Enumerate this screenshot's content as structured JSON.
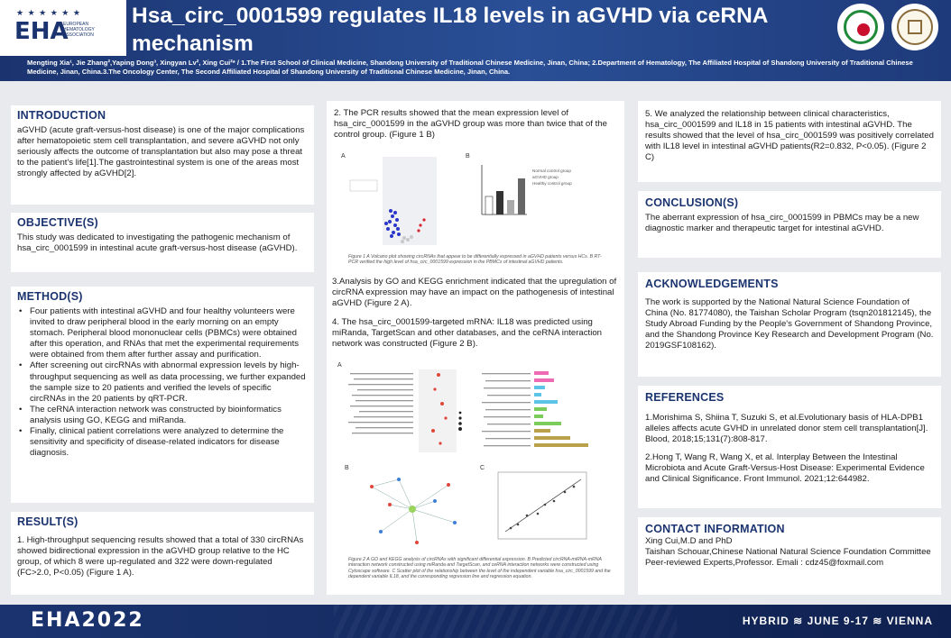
{
  "header": {
    "title": "Hsa_circ_0001599 regulates IL18 levels in aGVHD via ceRNA mechanism",
    "authors": "Mengting Xia¹, Jie Zhang²,Yaping Dong³, Xingyan Lv², Xing Cui²* / 1.The First School of Clinical Medicine, Shandong University of Traditional Chinese Medicine, Jinan, China; 2.Department of Hematology, The Affiliated Hospital of Shandong University of Traditional Chinese Medicine, Jinan, China.3.The Oncology Center, The Second Affiliated Hospital of Shandong University of Traditional Chinese Medicine, Jinan, China.",
    "logo_text": "EHA",
    "logo_stars": "★ ★ ★ ★ ★ ★",
    "logo_sub": "EUROPEAN HEMATOLOGY ASSOCIATION"
  },
  "intro": {
    "heading": "INTRODUCTION",
    "text": "aGVHD (acute graft-versus-host disease) is one of the major complications after hematopoietic stem cell transplantation, and severe aGVHD not only seriously affects the outcome of transplantation but also may pose a threat to the patient's life[1].The gastrointestinal system is one of the areas most strongly affected by aGVHD[2]."
  },
  "objective": {
    "heading": "OBJECTIVE(S)",
    "text": "This study was dedicated to investigating the pathogenic mechanism of hsa_circ_0001599 in intestinal acute graft-versus-host disease (aGVHD)."
  },
  "method": {
    "heading": "METHOD(S)",
    "items": [
      "Four patients with intestinal aGVHD and four healthy volunteers were invited to draw peripheral blood in the early morning on an empty stomach. Peripheral blood mononuclear cells (PBMCs) were obtained after this operation, and RNAs that met the experimental requirements were obtained from them after further assay and purification.",
      "After screening out circRNAs with abnormal expression levels by high-throughput sequencing as well as data processing, we further expanded the sample size to 20 patients and verified the levels of specific circRNAs in the 20 patients by qRT-PCR.",
      "The ceRNA interaction network was constructed by bioinformatics analysis using GO, KEGG and miRanda.",
      "Finally, clinical patient correlations were analyzed to determine the sensitivity and specificity of disease-related indicators for disease diagnosis."
    ]
  },
  "result": {
    "heading": "RESULT(S)",
    "text": "1. High-throughput sequencing results showed that a total of 330 circRNAs showed bidirectional expression in the aGVHD group relative to the HC group, of which 8 were up-regulated and 322 were down-regulated (FC>2.0, P<0.05) (Figure 1 A)."
  },
  "middle": {
    "p2": "2. The PCR results showed that the mean expression level of hsa_circ_0001599 in the aGVHD group was more than twice that of the control group. (Figure 1 B)",
    "fig1_caption": "Figure 1 A Volcano plot showing circRNAs that appear to be differentially expressed in aGVHD patients versus HCs. B RT-PCR verified the high level of hsa_circ_0001599 expression in the PBMCs of intestinal aGVHD patients.",
    "p3": "3.Analysis by GO and KEGG enrichment indicated that the upregulation of circRNA expression may have an impact on the pathogenesis of intestinal aGVHD (Figure 2 A).",
    "p4": "4. The hsa_circ_0001599-targeted mRNA: IL18 was predicted using miRanda, TargetScan and other databases, and the ceRNA interaction network was constructed (Figure  2 B).",
    "fig2_caption": "Figure 2 A GO and KEGG analysis of circRNAs with significant differential expression. B Predicted circRNA-miRNA-mRNA interaction network constructed using miRanda and TargetScan, and ceRNA interaction networks were constructed using Cytoscape software. C Scatter plot of the relationship between the level of the independent variable hsa_circ_0001599 and the dependent variable IL18, and the corresponding regression line and regression equation.",
    "labels": {
      "a": "A",
      "b": "B",
      "c": "C"
    },
    "bar_legend": [
      "Normal control group",
      "aGVHD group",
      "Healthy control group"
    ]
  },
  "right": {
    "p5": "5. We analyzed the relationship between clinical characteristics, hsa_circ_0001599 and IL18 in 15 patients with intestinal aGVHD. The results showed that the level of hsa_circ_0001599 was positively correlated with IL18 level in intestinal aGVHD patients(R2=0.832, P<0.05). (Figure 2 C)",
    "conclusion_heading": "CONCLUSION(S)",
    "conclusion_text": "The aberrant expression of hsa_circ_0001599 in PBMCs may be a new diagnostic marker and therapeutic target for intestinal aGVHD.",
    "ack_heading": "ACKNOWLEDGEMENTS",
    "ack_text": "The work is supported by the National Natural Science Foundation of China (No. 81774080), the Taishan Scholar Program (tsqn201812145), the Study Abroad Funding by the People's Government of Shandong Province, and the Shandong Province Key Research and Development Program (No. 2019GSF108162).",
    "ref_heading": "REFERENCES",
    "ref1": "1.Morishima S, Shiina T, Suzuki S, et al.Evolutionary basis of HLA-DPB1 alleles affects acute GVHD in unrelated donor stem cell transplantation[J]. Blood, 2018;15;131(7):808-817.",
    "ref2": "2.Hong T, Wang R, Wang X, et al. Interplay Between the Intestinal Microbiota and Acute Graft-Versus-Host Disease: Experimental Evidence and Clinical Significance. Front Immunol. 2021;12:644982.",
    "contact_heading": "CONTACT INFORMATION",
    "contact_lines": [
      "Xing Cui,M.D and PhD",
      "Taishan Schouar,Chinese National Natural Science Foundation Committee",
      "Peer-reviewed Experts,Professor. Emali : cdz45@foxmail.com"
    ]
  },
  "footer": {
    "left": "EHA2022",
    "right": "HYBRID ≋ JUNE 9-17 ≋ VIENNA"
  },
  "colors": {
    "brand_navy": "#1b3470",
    "heading": "#1b3470",
    "accent_red": "#c8102e"
  }
}
